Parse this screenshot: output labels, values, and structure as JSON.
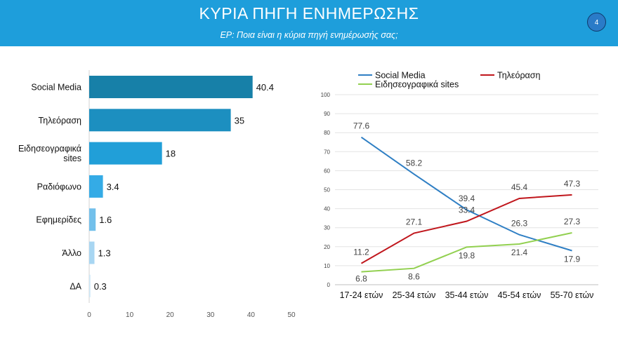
{
  "header": {
    "title": "ΚΥΡΙΑ ΠΗΓΗ ΕΝΗΜΕΡΩΣΗΣ",
    "subtitle": "ΕΡ: Ποια είναι η κύρια πηγή ενημέρωσής σας;",
    "page_number": "4",
    "background_color": "#1e9edb"
  },
  "chart_data": [
    {
      "type": "bar",
      "orientation": "horizontal",
      "title": "",
      "categories": [
        [
          "Social Media"
        ],
        [
          "Τηλεόραση"
        ],
        [
          "Ειδησεογραφικά",
          "sites"
        ],
        [
          "Ραδιόφωνο"
        ],
        [
          "Εφημερίδες"
        ],
        [
          "Άλλο"
        ],
        [
          "ΔΑ"
        ]
      ],
      "values": [
        40.4,
        35,
        18,
        3.4,
        1.6,
        1.3,
        0.3
      ],
      "value_labels": [
        "40.4",
        "35",
        "18",
        "3.4",
        "1.6",
        "1.3",
        "0.3"
      ],
      "colors": [
        "#1780a8",
        "#1c8fc0",
        "#219fd8",
        "#34abe6",
        "#72c0eb",
        "#a8d6f2",
        "#cfe8f7"
      ],
      "xlim": [
        0,
        50
      ],
      "xticks": [
        "0",
        "10",
        "20",
        "30",
        "40",
        "50"
      ],
      "grid": false
    },
    {
      "type": "line",
      "title": "",
      "categories": [
        "17-24 ετών",
        "25-34 ετών",
        "35-44 ετών",
        "45-54 ετών",
        "55-70 ετών"
      ],
      "ylim": [
        0,
        100
      ],
      "yticks": [
        "0",
        "10",
        "20",
        "30",
        "40",
        "50",
        "60",
        "70",
        "80",
        "90",
        "100"
      ],
      "grid": true,
      "legend_position": "top",
      "series": [
        {
          "name": "Social Media",
          "color": "#2f7fc4",
          "values": [
            77.6,
            58.2,
            39.4,
            26.3,
            17.9
          ],
          "labels": [
            "77.6",
            "58.2",
            "39.4",
            "26.3",
            "17.9"
          ]
        },
        {
          "name": "Τηλεόραση",
          "color": "#c0161c",
          "values": [
            11.2,
            27.1,
            33.4,
            45.4,
            47.3
          ],
          "labels": [
            "11.2",
            "27.1",
            "33.4",
            "45.4",
            "47.3"
          ]
        },
        {
          "name": "Ειδησεογραφικά sites",
          "color": "#92d050",
          "values": [
            6.8,
            8.6,
            19.8,
            21.4,
            27.3
          ],
          "labels": [
            "6.8",
            "8.6",
            "19.8",
            "21.4",
            "27.3"
          ]
        }
      ]
    }
  ]
}
